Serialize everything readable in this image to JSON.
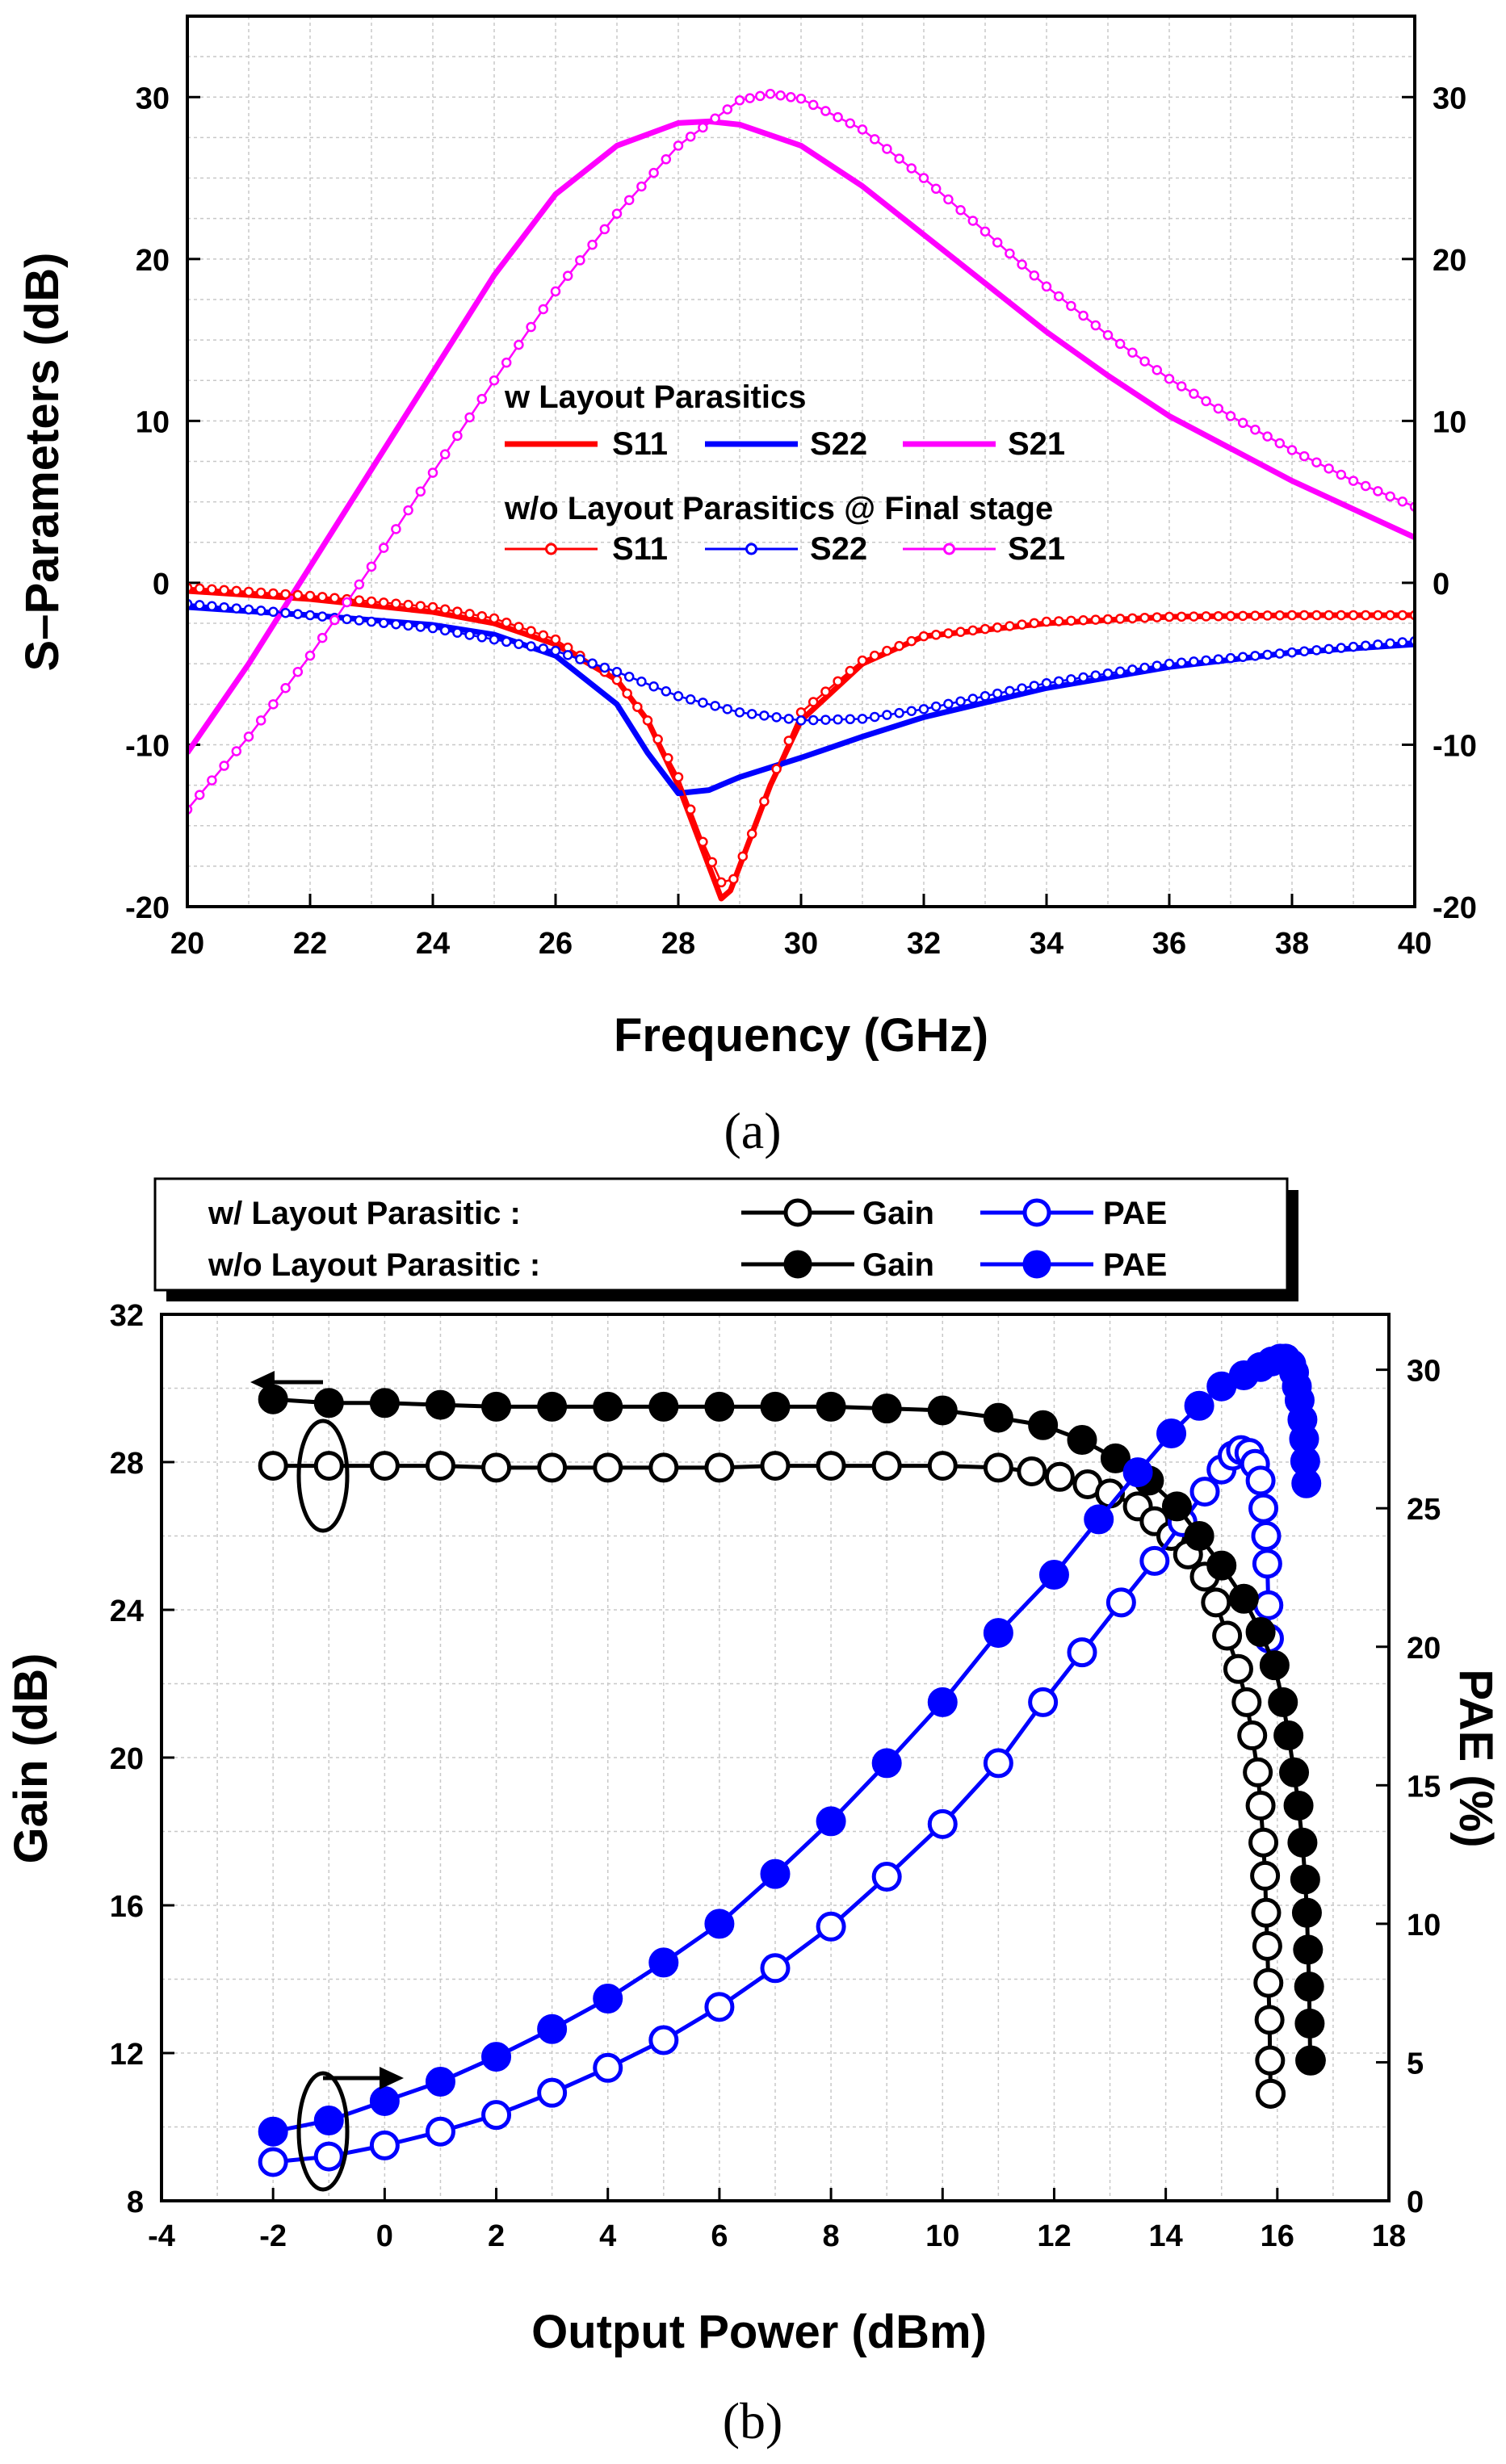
{
  "chart_data": [
    {
      "type": "line",
      "panel_label": "(a)",
      "xlabel": "Frequency (GHz)",
      "ylabel": "S–Parameters (dB)",
      "xlim": [
        20,
        40
      ],
      "ylim": [
        -20,
        35
      ],
      "xticks": [
        20,
        22,
        24,
        26,
        28,
        30,
        32,
        34,
        36,
        38,
        40
      ],
      "yticks": [
        -20,
        -10,
        0,
        10,
        20,
        30
      ],
      "grid": true,
      "colors": {
        "S11": "#ff0000",
        "S22": "#0000ff",
        "S21": "#ff00ff"
      },
      "legend": {
        "placement": "center",
        "group1_title": "w Layout Parasitics",
        "group2_title": "w/o Layout Parasitics @ Final stage",
        "labels": [
          "S11",
          "S22",
          "S21"
        ]
      },
      "series": [
        {
          "name": "S11",
          "group": "w",
          "marker": "none",
          "x": [
            20,
            22,
            24,
            25,
            26,
            27,
            27.5,
            28,
            28.4,
            28.7,
            28.85,
            29.1,
            29.5,
            30,
            31,
            32,
            34,
            36,
            38,
            40
          ],
          "y": [
            -0.5,
            -1.0,
            -1.8,
            -2.5,
            -3.8,
            -6.0,
            -8.5,
            -12.5,
            -16.5,
            -19.5,
            -19.0,
            -16.5,
            -12.5,
            -8.5,
            -5.0,
            -3.3,
            -2.5,
            -2.1,
            -2.0,
            -2.0
          ]
        },
        {
          "name": "S22",
          "group": "w",
          "marker": "none",
          "x": [
            20,
            22,
            24,
            25,
            26,
            27,
            27.5,
            28,
            28.5,
            29,
            30,
            31,
            32,
            34,
            36,
            38,
            40
          ],
          "y": [
            -1.5,
            -2.0,
            -2.6,
            -3.2,
            -4.5,
            -7.5,
            -10.5,
            -13.0,
            -12.8,
            -12.0,
            -10.8,
            -9.5,
            -8.3,
            -6.5,
            -5.2,
            -4.3,
            -3.8
          ]
        },
        {
          "name": "S21",
          "group": "w",
          "marker": "none",
          "x": [
            20,
            21,
            22,
            23,
            24,
            25,
            26,
            27,
            28,
            28.5,
            29,
            30,
            31,
            32,
            33,
            34,
            35,
            36,
            38,
            40
          ],
          "y": [
            -10.5,
            -5.0,
            1.0,
            7.0,
            13.0,
            19.0,
            24.0,
            27.0,
            28.4,
            28.5,
            28.3,
            27.0,
            24.5,
            21.5,
            18.5,
            15.5,
            12.8,
            10.3,
            6.3,
            2.8
          ]
        },
        {
          "name": "S11",
          "group": "w/o",
          "marker": "open-circle",
          "x": [
            20,
            22,
            24,
            25,
            26,
            27,
            27.5,
            28,
            28.4,
            28.7,
            28.9,
            29.2,
            29.6,
            30,
            31,
            32,
            34,
            36,
            38,
            40
          ],
          "y": [
            -0.3,
            -0.8,
            -1.5,
            -2.2,
            -3.5,
            -6.0,
            -8.5,
            -12.0,
            -16.0,
            -18.5,
            -18.3,
            -15.5,
            -11.5,
            -8.0,
            -4.8,
            -3.3,
            -2.4,
            -2.1,
            -2.0,
            -2.0
          ]
        },
        {
          "name": "S22",
          "group": "w/o",
          "marker": "open-circle",
          "x": [
            20,
            22,
            24,
            26,
            27,
            28,
            29,
            30,
            31,
            32,
            34,
            36,
            38,
            40
          ],
          "y": [
            -1.3,
            -2.0,
            -2.8,
            -4.2,
            -5.5,
            -7.0,
            -8.0,
            -8.5,
            -8.4,
            -7.8,
            -6.2,
            -5.0,
            -4.3,
            -3.6
          ]
        },
        {
          "name": "S21",
          "group": "w/o",
          "marker": "open-circle",
          "x": [
            20,
            21,
            22,
            23,
            24,
            25,
            26,
            27,
            28,
            29,
            29.5,
            30,
            31,
            32,
            33,
            34,
            35,
            36,
            37,
            38,
            39,
            40
          ],
          "y": [
            -14.0,
            -9.5,
            -4.5,
            1.0,
            6.8,
            12.5,
            18.0,
            22.8,
            27.0,
            29.8,
            30.2,
            29.9,
            28.0,
            25.0,
            21.7,
            18.3,
            15.3,
            12.6,
            10.3,
            8.2,
            6.3,
            4.7
          ]
        }
      ]
    },
    {
      "type": "line",
      "panel_label": "(b)",
      "xlabel": "Output Power (dBm)",
      "ylabel": "Gain (dB)",
      "y2label": "PAE (%)",
      "xlim": [
        -4,
        18
      ],
      "ylim": [
        8,
        32
      ],
      "y2lim": [
        0,
        32
      ],
      "xticks": [
        -4,
        -2,
        0,
        2,
        4,
        6,
        8,
        10,
        12,
        14,
        16,
        18
      ],
      "yticks": [
        8,
        12,
        16,
        20,
        24,
        28,
        32
      ],
      "y2ticks": [
        0,
        5,
        10,
        15,
        20,
        25,
        30
      ],
      "grid": true,
      "colors": {
        "Gain": "#000000",
        "PAE": "#0000ff"
      },
      "legend": {
        "placement": "top",
        "row1_label": "w/   Layout Parasitic :",
        "row2_label": "w/o Layout Parasitic :",
        "labels": [
          "Gain",
          "PAE"
        ]
      },
      "series": [
        {
          "name": "Gain",
          "group": "w/",
          "axis": "left",
          "marker": "open-circle",
          "x": [
            -2,
            -1,
            0,
            1,
            2,
            3,
            4,
            5,
            6,
            7,
            8,
            9,
            10,
            11,
            11.6,
            12.1,
            12.6,
            13.0,
            13.5,
            13.8,
            14.1,
            14.4,
            14.7,
            14.9,
            15.1,
            15.3,
            15.45,
            15.55,
            15.65,
            15.7,
            15.75,
            15.78,
            15.8,
            15.82,
            15.84,
            15.86,
            15.87,
            15.88,
            15.88
          ],
          "y": [
            27.9,
            27.9,
            27.9,
            27.9,
            27.85,
            27.85,
            27.85,
            27.85,
            27.85,
            27.9,
            27.9,
            27.9,
            27.9,
            27.85,
            27.75,
            27.6,
            27.4,
            27.15,
            26.8,
            26.4,
            26.0,
            25.5,
            24.9,
            24.2,
            23.3,
            22.4,
            21.5,
            20.6,
            19.6,
            18.7,
            17.7,
            16.8,
            15.8,
            14.9,
            13.9,
            12.9,
            11.8,
            10.9,
            10.9
          ]
        },
        {
          "name": "PAE",
          "group": "w/",
          "axis": "right",
          "marker": "open-circle",
          "x": [
            -2,
            -1,
            0,
            1,
            2,
            3,
            4,
            5,
            6,
            7,
            8,
            9,
            10,
            11,
            11.8,
            12.5,
            13.2,
            13.8,
            14.3,
            14.7,
            15.0,
            15.2,
            15.35,
            15.5,
            15.6,
            15.7,
            15.75,
            15.8,
            15.82,
            15.84,
            15.85
          ],
          "y": [
            1.4,
            1.6,
            2.0,
            2.5,
            3.1,
            3.9,
            4.8,
            5.8,
            7.0,
            8.4,
            9.9,
            11.7,
            13.6,
            15.8,
            18.0,
            19.8,
            21.6,
            23.1,
            24.5,
            25.6,
            26.4,
            26.9,
            27.1,
            27.0,
            26.6,
            26.0,
            25.0,
            24.0,
            23.0,
            21.5,
            20.3
          ]
        },
        {
          "name": "Gain",
          "group": "w/o",
          "axis": "left",
          "marker": "filled-circle",
          "x": [
            -2,
            -1,
            0,
            1,
            2,
            3,
            4,
            5,
            6,
            7,
            8,
            9,
            10,
            11,
            11.8,
            12.5,
            13.1,
            13.7,
            14.2,
            14.6,
            15.0,
            15.4,
            15.7,
            15.95,
            16.1,
            16.2,
            16.3,
            16.38,
            16.45,
            16.5,
            16.53,
            16.55,
            16.57,
            16.58,
            16.59,
            16.6,
            16.6
          ],
          "y": [
            29.7,
            29.6,
            29.6,
            29.55,
            29.5,
            29.5,
            29.5,
            29.5,
            29.5,
            29.5,
            29.5,
            29.45,
            29.4,
            29.2,
            29.0,
            28.6,
            28.1,
            27.5,
            26.8,
            26.0,
            25.2,
            24.3,
            23.4,
            22.5,
            21.5,
            20.6,
            19.6,
            18.7,
            17.7,
            16.7,
            15.8,
            14.8,
            13.8,
            12.8,
            11.8,
            11.8,
            11.8
          ]
        },
        {
          "name": "PAE",
          "group": "w/o",
          "axis": "right",
          "marker": "filled-circle",
          "x": [
            -2,
            -1,
            0,
            1,
            2,
            3,
            4,
            5,
            6,
            7,
            8,
            9,
            10,
            11,
            12,
            12.8,
            13.5,
            14.1,
            14.6,
            15.0,
            15.4,
            15.7,
            15.9,
            16.05,
            16.15,
            16.25,
            16.3,
            16.35,
            16.4,
            16.45,
            16.48,
            16.5,
            16.52
          ],
          "y": [
            2.5,
            2.9,
            3.6,
            4.3,
            5.2,
            6.2,
            7.3,
            8.6,
            10.0,
            11.8,
            13.7,
            15.8,
            18.0,
            20.5,
            22.6,
            24.6,
            26.3,
            27.7,
            28.7,
            29.4,
            29.8,
            30.1,
            30.3,
            30.4,
            30.4,
            30.2,
            29.9,
            29.4,
            28.9,
            28.2,
            27.5,
            26.7,
            25.9
          ]
        }
      ]
    }
  ]
}
